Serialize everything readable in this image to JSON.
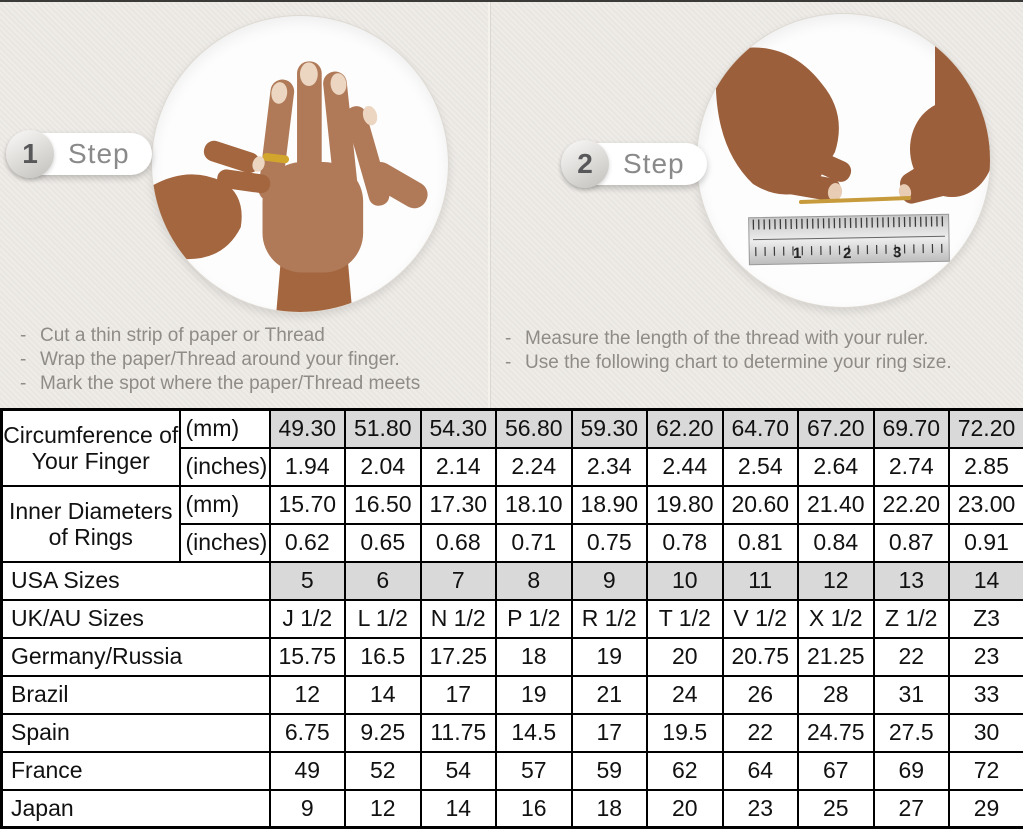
{
  "page": {
    "background": "#e9e6e1",
    "top_border": "#3a3a38"
  },
  "steps": [
    {
      "number": "1",
      "label": "Step",
      "instructions": [
        "Cut a thin strip of paper or Thread",
        "Wrap the paper/Thread around your finger.",
        "Mark the spot where the paper/Thread meets"
      ]
    },
    {
      "number": "2",
      "label": "Step",
      "instructions": [
        "Measure the length of the thread with your ruler.",
        "Use the following chart to determine your ring size."
      ]
    }
  ],
  "photos": {
    "step1_subject": "hand-with-ring",
    "step2_subject": "hands-measuring-thread-on-ruler",
    "ruler_marks": [
      "1",
      "2",
      "3"
    ]
  },
  "colors": {
    "shaded_cell": "#d9d9d9",
    "table_border": "#000000",
    "thread_gold": "#c79b3b",
    "skin_tone": "#a96f4e"
  },
  "table": {
    "rows": [
      {
        "label": "Circumference of Your Finger",
        "labelRowspan": 2,
        "unit": "(mm)",
        "values": [
          "49.30",
          "51.80",
          "54.30",
          "56.80",
          "59.30",
          "62.20",
          "64.70",
          "67.20",
          "69.70",
          "72.20"
        ],
        "shaded": true
      },
      {
        "unit": "(inches)",
        "values": [
          "1.94",
          "2.04",
          "2.14",
          "2.24",
          "2.34",
          "2.44",
          "2.54",
          "2.64",
          "2.74",
          "2.85"
        ],
        "shaded": false
      },
      {
        "label": "Inner Diameters of Rings",
        "labelRowspan": 2,
        "unit": "(mm)",
        "values": [
          "15.70",
          "16.50",
          "17.30",
          "18.10",
          "18.90",
          "19.80",
          "20.60",
          "21.40",
          "22.20",
          "23.00"
        ],
        "shaded": false
      },
      {
        "unit": "(inches)",
        "values": [
          "0.62",
          "0.65",
          "0.68",
          "0.71",
          "0.75",
          "0.78",
          "0.81",
          "0.84",
          "0.87",
          "0.91"
        ],
        "shaded": false
      },
      {
        "label": "USA Sizes",
        "labelColspan": 2,
        "values": [
          "5",
          "6",
          "7",
          "8",
          "9",
          "10",
          "11",
          "12",
          "13",
          "14"
        ],
        "shaded": true
      },
      {
        "label": "UK/AU Sizes",
        "labelColspan": 2,
        "values": [
          "J 1/2",
          "L 1/2",
          "N 1/2",
          "P 1/2",
          "R 1/2",
          "T 1/2",
          "V 1/2",
          "X 1/2",
          "Z 1/2",
          "Z3"
        ],
        "shaded": false
      },
      {
        "label": "Germany/Russia",
        "labelColspan": 2,
        "values": [
          "15.75",
          "16.5",
          "17.25",
          "18",
          "19",
          "20",
          "20.75",
          "21.25",
          "22",
          "23"
        ],
        "shaded": false
      },
      {
        "label": "Brazil",
        "labelColspan": 2,
        "values": [
          "12",
          "14",
          "17",
          "19",
          "21",
          "24",
          "26",
          "28",
          "31",
          "33"
        ],
        "shaded": false
      },
      {
        "label": "Spain",
        "labelColspan": 2,
        "values": [
          "6.75",
          "9.25",
          "11.75",
          "14.5",
          "17",
          "19.5",
          "22",
          "24.75",
          "27.5",
          "30"
        ],
        "shaded": false
      },
      {
        "label": "France",
        "labelColspan": 2,
        "values": [
          "49",
          "52",
          "54",
          "57",
          "59",
          "62",
          "64",
          "67",
          "69",
          "72"
        ],
        "shaded": false
      },
      {
        "label": "Japan",
        "labelColspan": 2,
        "values": [
          "9",
          "12",
          "14",
          "16",
          "18",
          "20",
          "23",
          "25",
          "27",
          "29"
        ],
        "shaded": false
      }
    ]
  }
}
